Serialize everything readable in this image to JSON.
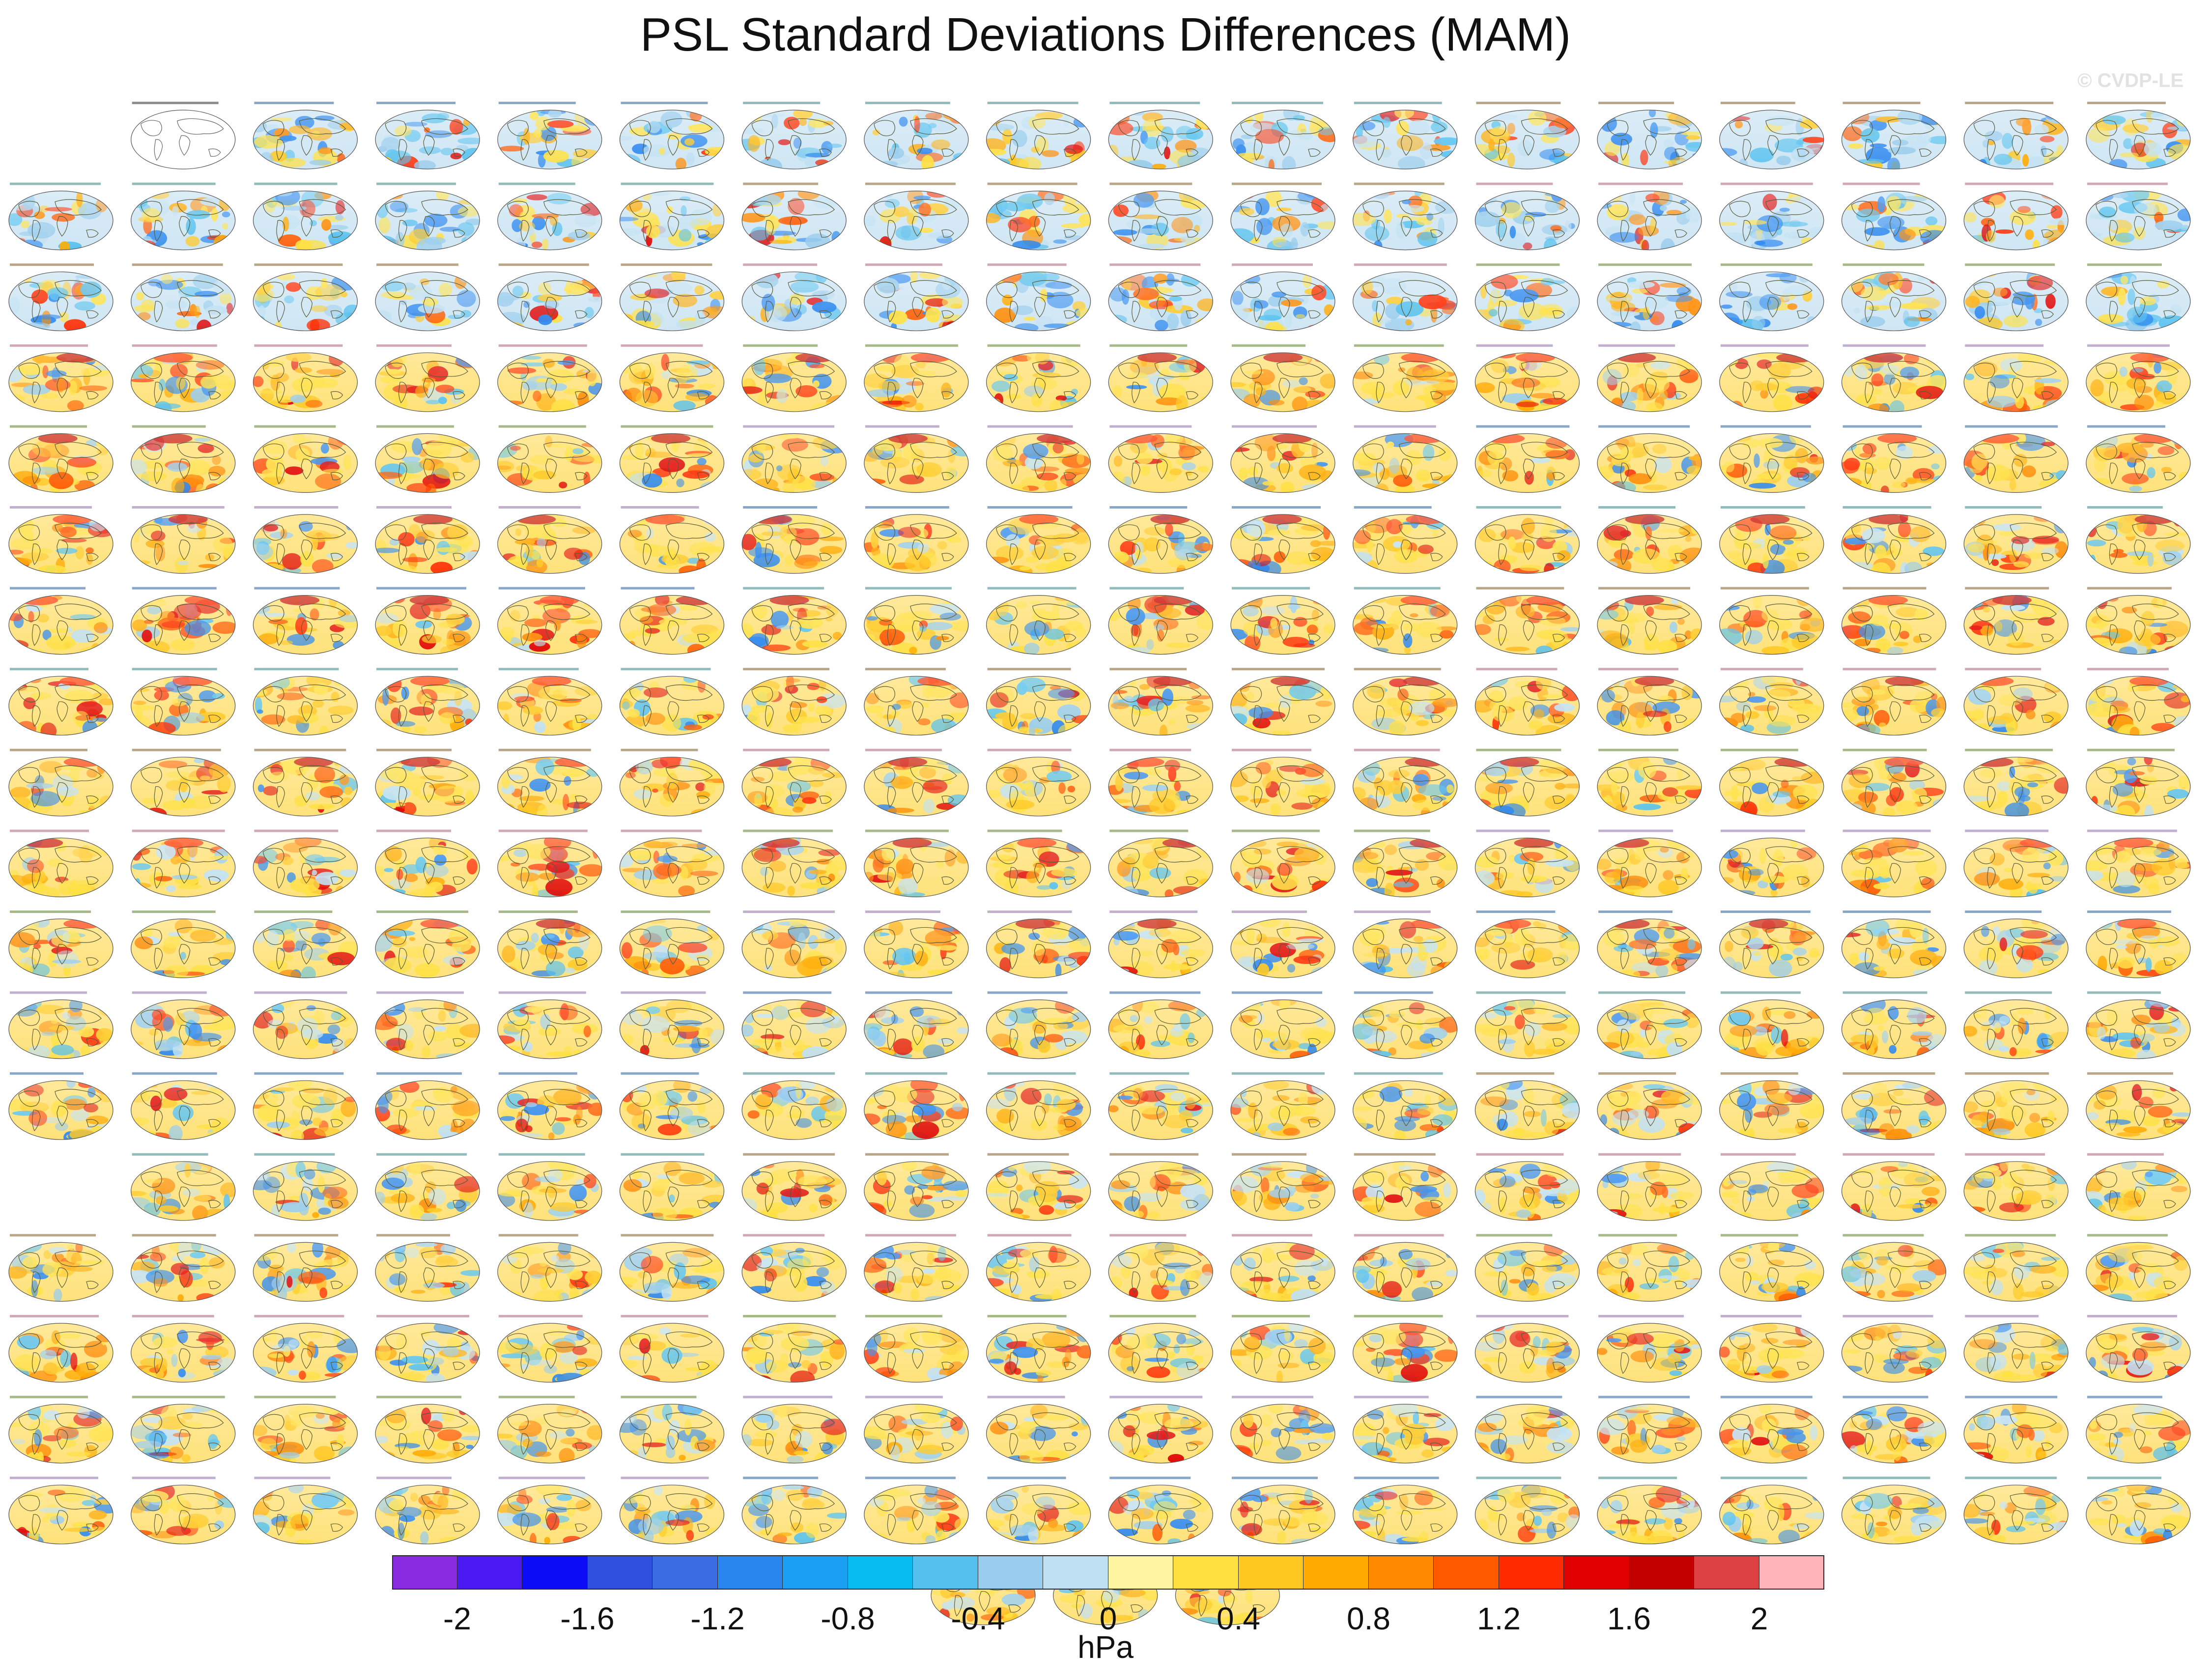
{
  "title": "PSL Standard Deviations Differences (MAM)",
  "watermark": "© CVDP-LE",
  "units": "hPa",
  "colorbar": {
    "colors": [
      "#8a2be2",
      "#4b19f2",
      "#0b0bf5",
      "#3050e0",
      "#3a6ee2",
      "#2a86ef",
      "#1aa0f2",
      "#08bcf2",
      "#55c0ee",
      "#98ccec",
      "#bfe0f2",
      "#fff4a0",
      "#ffe040",
      "#ffc820",
      "#ffaa00",
      "#ff8a00",
      "#ff5a00",
      "#ff2a00",
      "#e00000",
      "#c20000",
      "#dc4040",
      "#ffb4b8"
    ],
    "tick_labels": [
      "-2",
      "-1.6",
      "-1.2",
      "-0.8",
      "-0.4",
      "0",
      "0.4",
      "0.8",
      "1.2",
      "1.6",
      "2"
    ]
  },
  "grid": {
    "columns": 18,
    "rows": 18,
    "empty_cells": [
      [
        0,
        0
      ],
      [
        13,
        0
      ]
    ],
    "reference_cell": [
      0,
      1
    ],
    "extra_panels": 3
  }
}
